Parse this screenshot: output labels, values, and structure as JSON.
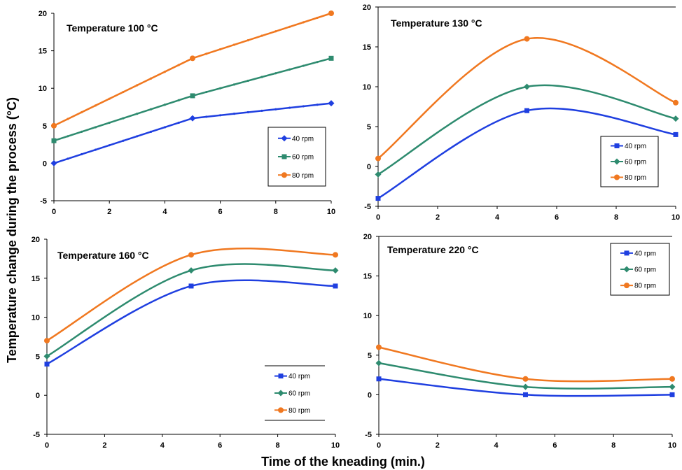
{
  "figure": {
    "ylabel": "Temperature change during the process (°C)",
    "xlabel": "Time of the kneading (min.)"
  },
  "chart_data": [
    {
      "type": "line",
      "title": "Temperature 100 °C",
      "x": [
        0,
        5,
        10
      ],
      "xlim": [
        0,
        10
      ],
      "ylim": [
        -5,
        20
      ],
      "xticks": [
        0,
        2,
        4,
        6,
        8,
        10
      ],
      "yticks": [
        -5,
        0,
        5,
        10,
        15,
        20
      ],
      "smooth": false,
      "legend": "right",
      "series": [
        {
          "name": "40 rpm",
          "values": [
            0,
            6,
            8
          ],
          "color": "#1f3fe0",
          "marker": "diamond"
        },
        {
          "name": "60 rpm",
          "values": [
            3,
            9,
            14
          ],
          "color": "#2e8b6f",
          "marker": "square"
        },
        {
          "name": "80 rpm",
          "values": [
            5,
            14,
            20
          ],
          "color": "#f07820",
          "marker": "circle"
        }
      ]
    },
    {
      "type": "line",
      "title": "Temperature 130 °C",
      "x": [
        0,
        5,
        10
      ],
      "xlim": [
        0,
        10
      ],
      "ylim": [
        -5,
        20
      ],
      "xticks": [
        0,
        2,
        4,
        6,
        8,
        10
      ],
      "yticks": [
        -5,
        0,
        5,
        10,
        15,
        20
      ],
      "smooth": true,
      "legend": "bottom-right",
      "series": [
        {
          "name": "40 rpm",
          "values": [
            -4,
            7,
            4
          ],
          "color": "#1f3fe0",
          "marker": "square"
        },
        {
          "name": "60 rpm",
          "values": [
            -1,
            10,
            6
          ],
          "color": "#2e8b6f",
          "marker": "diamond"
        },
        {
          "name": "80 rpm",
          "values": [
            1,
            16,
            8
          ],
          "color": "#f07820",
          "marker": "circle"
        }
      ]
    },
    {
      "type": "line",
      "title": "Temperature 160 °C",
      "x": [
        0,
        5,
        10
      ],
      "xlim": [
        0,
        10
      ],
      "ylim": [
        -5,
        20
      ],
      "xticks": [
        0,
        2,
        4,
        6,
        8,
        10
      ],
      "yticks": [
        -5,
        0,
        5,
        10,
        15,
        20
      ],
      "smooth": true,
      "legend": "bottom-right",
      "series": [
        {
          "name": "40 rpm",
          "values": [
            4,
            14,
            14
          ],
          "color": "#1f3fe0",
          "marker": "square"
        },
        {
          "name": "60 rpm",
          "values": [
            5,
            16,
            16
          ],
          "color": "#2e8b6f",
          "marker": "diamond"
        },
        {
          "name": "80 rpm",
          "values": [
            7,
            18,
            18
          ],
          "color": "#f07820",
          "marker": "circle"
        }
      ]
    },
    {
      "type": "line",
      "title": "Temperature 220 °C",
      "x": [
        0,
        5,
        10
      ],
      "xlim": [
        0,
        10
      ],
      "ylim": [
        -5,
        20
      ],
      "xticks": [
        0,
        2,
        4,
        6,
        8,
        10
      ],
      "yticks": [
        -5,
        0,
        5,
        10,
        15,
        20
      ],
      "smooth": true,
      "legend": "top-right",
      "series": [
        {
          "name": "40 rpm",
          "values": [
            2,
            0,
            0
          ],
          "color": "#1f3fe0",
          "marker": "square"
        },
        {
          "name": "60 rpm",
          "values": [
            4,
            1,
            1
          ],
          "color": "#2e8b6f",
          "marker": "diamond"
        },
        {
          "name": "80 rpm",
          "values": [
            6,
            2,
            2
          ],
          "color": "#f07820",
          "marker": "circle"
        }
      ]
    }
  ]
}
